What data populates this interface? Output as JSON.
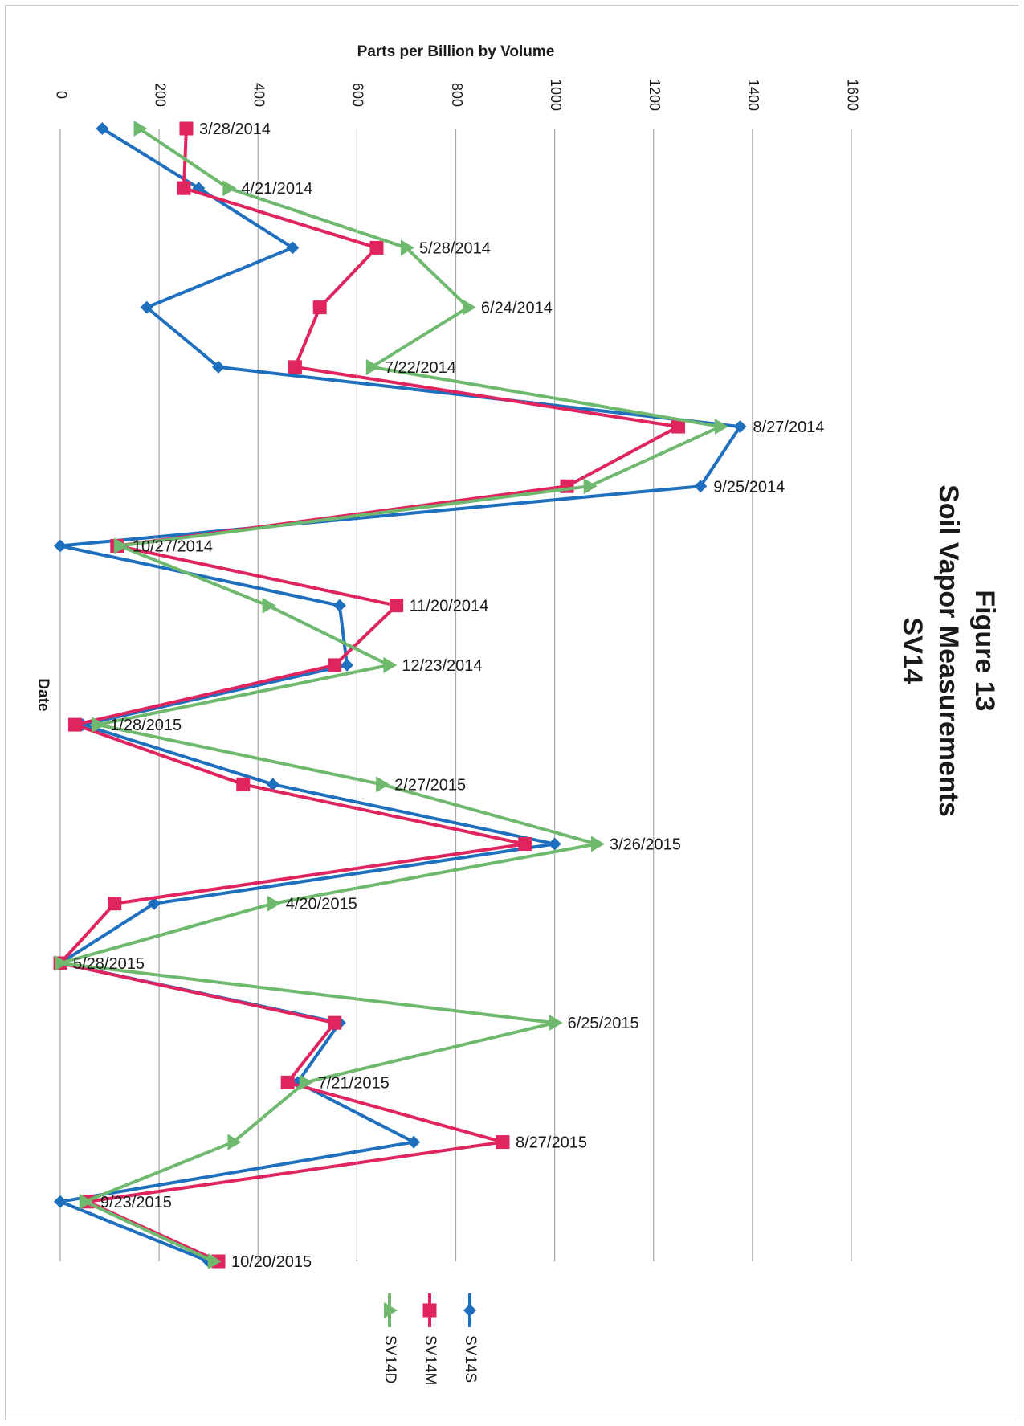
{
  "chart_data": {
    "type": "line",
    "title": [
      "Figure 13",
      "Soil Vapor Measurements",
      "SV14"
    ],
    "ylabel": "Parts per Billion by Volume",
    "xlabel": "Date",
    "ylim": [
      0,
      1600
    ],
    "yticks": [
      0,
      200,
      400,
      600,
      800,
      1000,
      1200,
      1400,
      1600
    ],
    "categories": [
      "3/28/2014",
      "4/21/2014",
      "5/28/2014",
      "6/24/2014",
      "7/22/2014",
      "8/27/2014",
      "9/25/2014",
      "10/27/2014",
      "11/20/2014",
      "12/23/2014",
      "1/28/2015",
      "2/27/2015",
      "3/26/2015",
      "4/20/2015",
      "5/28/2015",
      "6/25/2015",
      "7/21/2015",
      "8/27/2015",
      "9/23/2015",
      "10/20/2015"
    ],
    "legend_position": "bottom",
    "grid": true,
    "series": [
      {
        "name": "SV14S",
        "color": "#1f6fbf",
        "marker": "diamond",
        "values": [
          85,
          280,
          470,
          175,
          320,
          1375,
          1295,
          0,
          565,
          580,
          45,
          430,
          1000,
          190,
          0,
          565,
          480,
          715,
          0,
          300
        ]
      },
      {
        "name": "SV14M",
        "color": "#e0245e",
        "marker": "square",
        "values": [
          255,
          250,
          640,
          525,
          475,
          1250,
          1025,
          115,
          680,
          555,
          30,
          370,
          940,
          110,
          0,
          555,
          460,
          895,
          55,
          320
        ]
      },
      {
        "name": "SV14D",
        "color": "#6fb96f",
        "marker": "triangle",
        "values": [
          160,
          340,
          700,
          825,
          630,
          1335,
          1070,
          120,
          420,
          665,
          75,
          650,
          1085,
          430,
          0,
          1000,
          495,
          350,
          50,
          310
        ]
      }
    ]
  }
}
